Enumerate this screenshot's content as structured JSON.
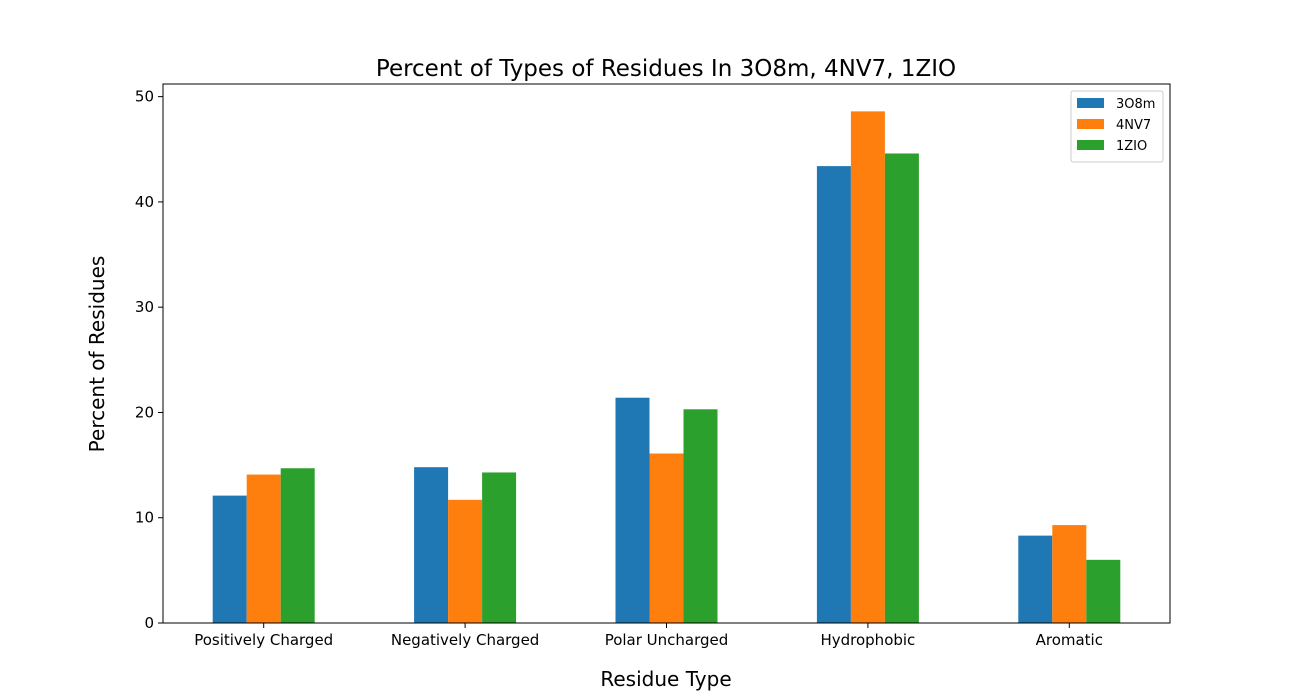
{
  "chart_data": {
    "type": "bar",
    "title": "Percent of Types of Residues In 3O8m, 4NV7, 1ZIO",
    "xlabel": "Residue Type",
    "ylabel": "Percent of Residues",
    "categories": [
      "Positively Charged",
      "Negatively Charged",
      "Polar Uncharged",
      "Hydrophobic",
      "Aromatic"
    ],
    "series": [
      {
        "name": "3O8m",
        "color": "#1f77b4",
        "values": [
          12.1,
          14.8,
          21.4,
          43.4,
          8.3
        ]
      },
      {
        "name": "4NV7",
        "color": "#ff7f0e",
        "values": [
          14.1,
          11.7,
          16.1,
          48.6,
          9.3
        ]
      },
      {
        "name": "1ZIO",
        "color": "#2ca02c",
        "values": [
          14.7,
          14.3,
          20.3,
          44.6,
          6.0
        ]
      }
    ],
    "ylim": [
      0,
      51.2
    ],
    "yticks": [
      0,
      10,
      20,
      30,
      40,
      50
    ],
    "grid": false,
    "legend_position": "top-right"
  }
}
